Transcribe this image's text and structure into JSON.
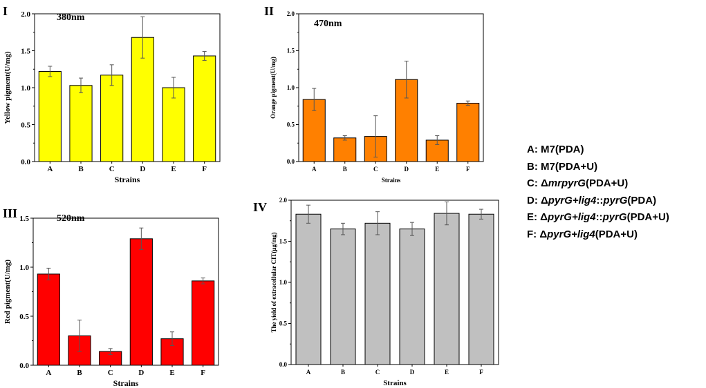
{
  "chart_data": [
    {
      "type": "bar",
      "panel": "I",
      "subtitle": "380nm",
      "xlabel": "Strains",
      "ylabel": "Yellow pigment(U/mg)",
      "categories": [
        "A",
        "B",
        "C",
        "D",
        "E",
        "F"
      ],
      "values": [
        1.22,
        1.03,
        1.17,
        1.68,
        1.0,
        1.43
      ],
      "errors": [
        0.07,
        0.1,
        0.14,
        0.28,
        0.14,
        0.06
      ],
      "ylim": [
        0,
        2.0
      ],
      "yticks": [
        "0.0",
        "0.5",
        "1.0",
        "1.5",
        "2.0"
      ],
      "color": "#ffff00"
    },
    {
      "type": "bar",
      "panel": "II",
      "subtitle": "470nm",
      "xlabel": "Strains",
      "ylabel": "Orange pigment(U/mg)",
      "categories": [
        "A",
        "B",
        "C",
        "D",
        "E",
        "F"
      ],
      "values": [
        0.84,
        0.32,
        0.34,
        1.11,
        0.29,
        0.79
      ],
      "errors": [
        0.15,
        0.03,
        0.28,
        0.25,
        0.06,
        0.03
      ],
      "ylim": [
        0,
        2.0
      ],
      "yticks": [
        "0.0",
        "0.5",
        "1.0",
        "1.5",
        "2.0"
      ],
      "color": "#ff8000"
    },
    {
      "type": "bar",
      "panel": "III",
      "subtitle": "520nm",
      "xlabel": "Strains",
      "ylabel": "Red pigment(U/mg)",
      "categories": [
        "A",
        "B",
        "C",
        "D",
        "E",
        "F"
      ],
      "values": [
        0.93,
        0.3,
        0.14,
        1.29,
        0.27,
        0.86
      ],
      "errors": [
        0.06,
        0.16,
        0.03,
        0.11,
        0.07,
        0.03
      ],
      "ylim": [
        0,
        1.5
      ],
      "yticks": [
        "0.0",
        "0.5",
        "1.0",
        "1.5"
      ],
      "color": "#ff0000"
    },
    {
      "type": "bar",
      "panel": "IV",
      "subtitle": "",
      "xlabel": "Strains",
      "ylabel": "The yield of extracellular CIT(μg/mg)",
      "categories": [
        "A",
        "B",
        "C",
        "D",
        "E",
        "F"
      ],
      "values": [
        1.83,
        1.65,
        1.72,
        1.65,
        1.84,
        1.83
      ],
      "errors": [
        0.11,
        0.07,
        0.14,
        0.08,
        0.14,
        0.06
      ],
      "ylim": [
        0,
        2.0
      ],
      "yticks": [
        "0.0",
        "0.5",
        "1.0",
        "1.5",
        "2.0"
      ],
      "color": "#c0c0c0"
    }
  ],
  "legend": [
    {
      "prefix": "A: M7(PDA)",
      "italic": "",
      "mid": "",
      "italic2": "",
      "suffix": ""
    },
    {
      "prefix": "B: M7(PDA+U)",
      "italic": "",
      "mid": "",
      "italic2": "",
      "suffix": ""
    },
    {
      "prefix": "C: Δ",
      "italic": "mrpyrG",
      "mid": "",
      "italic2": "",
      "suffix": "(PDA+U)"
    },
    {
      "prefix": "D: Δ",
      "italic": "pyrG+lig4",
      "mid": "::",
      "italic2": "pyrG",
      "suffix": "(PDA)"
    },
    {
      "prefix": "E:  Δ",
      "italic": "pyrG+lig4",
      "mid": "::",
      "italic2": "pyrG",
      "suffix": "(PDA+U)"
    },
    {
      "prefix": "F:  Δ",
      "italic": "pyrG+lig4",
      "mid": "",
      "italic2": "",
      "suffix": "(PDA+U)"
    }
  ]
}
